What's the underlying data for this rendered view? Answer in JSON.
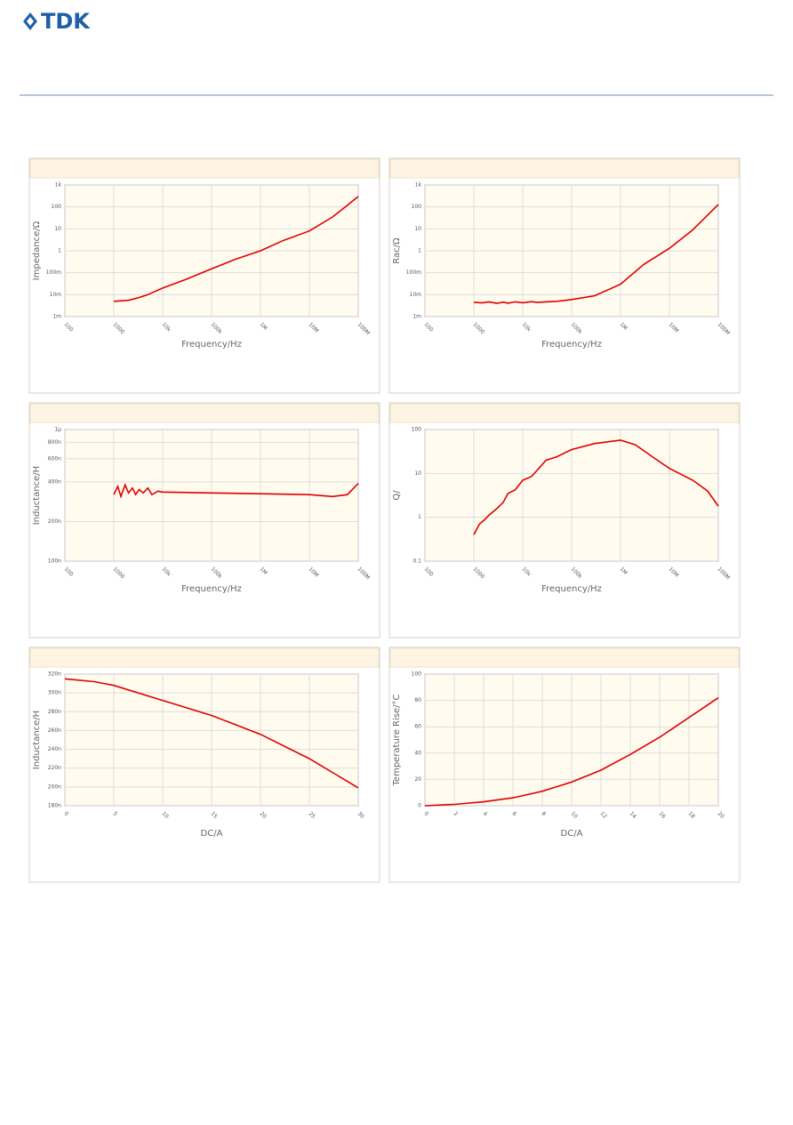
{
  "header": {
    "logo": "TDK"
  },
  "chart_data": [
    {
      "type": "line",
      "xlabel": "Frequency/Hz",
      "ylabel": "Impedance/Ω",
      "xscale": "log",
      "yscale": "log",
      "grid": true,
      "color": "#e00000",
      "xlim": [
        100,
        100000000
      ],
      "ylim": [
        0.001,
        1000
      ],
      "xticks": [
        100,
        1000,
        {
          "value": 10000,
          "label": "10k"
        },
        {
          "value": 100000,
          "label": "100k"
        },
        {
          "value": 1000000,
          "label": "1M"
        },
        {
          "value": 10000000,
          "label": "10M"
        },
        {
          "value": 100000000,
          "label": "100M"
        }
      ],
      "yticks": [
        {
          "value": 0.001,
          "label": "1m"
        },
        {
          "value": 0.01,
          "label": "10m"
        },
        {
          "value": 0.1,
          "label": "100m"
        },
        1,
        10,
        100,
        {
          "value": 1000,
          "label": "1k"
        }
      ],
      "x": [
        1000,
        2000,
        3000,
        5000,
        10000,
        30000,
        100000,
        300000,
        1000000,
        3000000,
        10000000,
        30000000,
        60000000,
        100000000
      ],
      "values": [
        0.005,
        0.0055,
        0.007,
        0.01,
        0.02,
        0.05,
        0.15,
        0.4,
        1,
        3,
        8,
        35,
        120,
        300
      ]
    },
    {
      "type": "line",
      "xlabel": "Frequency/Hz",
      "ylabel": "Rac/Ω",
      "xscale": "log",
      "yscale": "log",
      "grid": true,
      "color": "#e00000",
      "xlim": [
        100,
        100000000
      ],
      "ylim": [
        0.001,
        1000
      ],
      "xticks": [
        100,
        1000,
        {
          "value": 10000,
          "label": "10k"
        },
        {
          "value": 100000,
          "label": "100k"
        },
        {
          "value": 1000000,
          "label": "1M"
        },
        {
          "value": 10000000,
          "label": "10M"
        },
        {
          "value": 100000000,
          "label": "100M"
        }
      ],
      "yticks": [
        {
          "value": 0.001,
          "label": "1m"
        },
        {
          "value": 0.01,
          "label": "10m"
        },
        {
          "value": 0.1,
          "label": "100m"
        },
        1,
        10,
        100,
        {
          "value": 1000,
          "label": "1k"
        }
      ],
      "x": [
        1000,
        1500,
        2000,
        3000,
        4000,
        5000,
        7000,
        10000,
        15000,
        20000,
        30000,
        50000,
        100000,
        300000,
        1000000,
        3000000,
        10000000,
        30000000,
        100000000
      ],
      "values": [
        0.0045,
        0.0042,
        0.0047,
        0.004,
        0.0046,
        0.0041,
        0.0047,
        0.0043,
        0.0048,
        0.0044,
        0.0047,
        0.005,
        0.006,
        0.009,
        0.03,
        0.24,
        1.3,
        9,
        130
      ]
    },
    {
      "type": "line",
      "xlabel": "Frequency/Hz",
      "ylabel": "Inductance/H",
      "xscale": "log",
      "yscale": "log",
      "grid": true,
      "color": "#e00000",
      "xlim": [
        100,
        100000000
      ],
      "ylim": [
        1e-07,
        1e-06
      ],
      "xticks": [
        100,
        1000,
        {
          "value": 10000,
          "label": "10k"
        },
        {
          "value": 100000,
          "label": "100k"
        },
        {
          "value": 1000000,
          "label": "1M"
        },
        {
          "value": 10000000,
          "label": "10M"
        },
        {
          "value": 100000000,
          "label": "100M"
        }
      ],
      "yticks": [
        {
          "value": 1e-07,
          "label": "100n"
        },
        {
          "value": 2e-07,
          "label": "200n"
        },
        {
          "value": 4e-07,
          "label": "400n"
        },
        {
          "value": 6e-07,
          "label": "600n"
        },
        {
          "value": 8e-07,
          "label": "800n"
        },
        {
          "value": 1e-06,
          "label": "1μ"
        }
      ],
      "x": [
        1000,
        1200,
        1400,
        1700,
        2000,
        2400,
        2800,
        3300,
        4000,
        5000,
        6000,
        8000,
        10000,
        100000,
        1000000,
        10000000,
        30000000,
        60000000,
        100000000
      ],
      "values": [
        3.2e-07,
        3.7e-07,
        3.1e-07,
        3.8e-07,
        3.3e-07,
        3.6e-07,
        3.2e-07,
        3.5e-07,
        3.3e-07,
        3.6e-07,
        3.2e-07,
        3.4e-07,
        3.35e-07,
        3.3e-07,
        3.25e-07,
        3.2e-07,
        3.1e-07,
        3.2e-07,
        3.9e-07
      ]
    },
    {
      "type": "line",
      "xlabel": "Frequency/Hz",
      "ylabel": "Q/",
      "xscale": "log",
      "yscale": "log",
      "grid": true,
      "color": "#e00000",
      "xlim": [
        100,
        100000000
      ],
      "ylim": [
        0.1,
        100
      ],
      "xticks": [
        100,
        1000,
        {
          "value": 10000,
          "label": "10k"
        },
        {
          "value": 100000,
          "label": "100k"
        },
        {
          "value": 1000000,
          "label": "1M"
        },
        {
          "value": 10000000,
          "label": "10M"
        },
        {
          "value": 100000000,
          "label": "100M"
        }
      ],
      "yticks": [
        0.1,
        1,
        10,
        100
      ],
      "x": [
        1000,
        1300,
        1700,
        2000,
        3000,
        4000,
        5000,
        7000,
        10000,
        15000,
        20000,
        30000,
        50000,
        100000,
        300000,
        1000000,
        2000000,
        5000000,
        10000000,
        30000000,
        60000000,
        100000000
      ],
      "values": [
        0.4,
        0.7,
        0.9,
        1.1,
        1.6,
        2.2,
        3.5,
        4.2,
        7,
        8.5,
        12,
        20,
        24,
        35,
        48,
        57,
        45,
        22,
        13,
        7,
        4,
        1.8
      ]
    },
    {
      "type": "line",
      "xlabel": "DC/A",
      "ylabel": "Inductance/H",
      "xscale": "linear",
      "yscale": "linear",
      "grid": true,
      "color": "#e00000",
      "xlim": [
        0,
        30
      ],
      "ylim": [
        1.8e-07,
        3.2e-07
      ],
      "xticks": [
        0,
        5,
        10,
        15,
        20,
        25,
        30
      ],
      "yticks": [
        {
          "value": 1.8e-07,
          "label": "180n"
        },
        {
          "value": 2e-07,
          "label": "200n"
        },
        {
          "value": 2.2e-07,
          "label": "220n"
        },
        {
          "value": 2.4e-07,
          "label": "240n"
        },
        {
          "value": 2.6e-07,
          "label": "260n"
        },
        {
          "value": 2.8e-07,
          "label": "280n"
        },
        {
          "value": 3e-07,
          "label": "300n"
        },
        {
          "value": 3.2e-07,
          "label": "320n"
        }
      ],
      "x": [
        0,
        3,
        5,
        10,
        15,
        20,
        25,
        30
      ],
      "values": [
        3.15e-07,
        3.12e-07,
        3.08e-07,
        2.92e-07,
        2.76e-07,
        2.56e-07,
        2.3e-07,
        1.99e-07
      ]
    },
    {
      "type": "line",
      "xlabel": "DC/A",
      "ylabel": "Temperature Rise/°C",
      "xscale": "linear",
      "yscale": "linear",
      "grid": true,
      "color": "#e00000",
      "xlim": [
        0,
        20
      ],
      "ylim": [
        0,
        100
      ],
      "xticks": [
        0,
        2,
        4,
        6,
        8,
        10,
        12,
        14,
        16,
        18,
        20
      ],
      "yticks": [
        0,
        20,
        40,
        60,
        80,
        100
      ],
      "x": [
        0,
        2,
        4,
        6,
        8,
        10,
        12,
        14,
        16,
        18,
        20
      ],
      "values": [
        0,
        1,
        3,
        6,
        11,
        18,
        27,
        39,
        52,
        67,
        82
      ]
    }
  ]
}
